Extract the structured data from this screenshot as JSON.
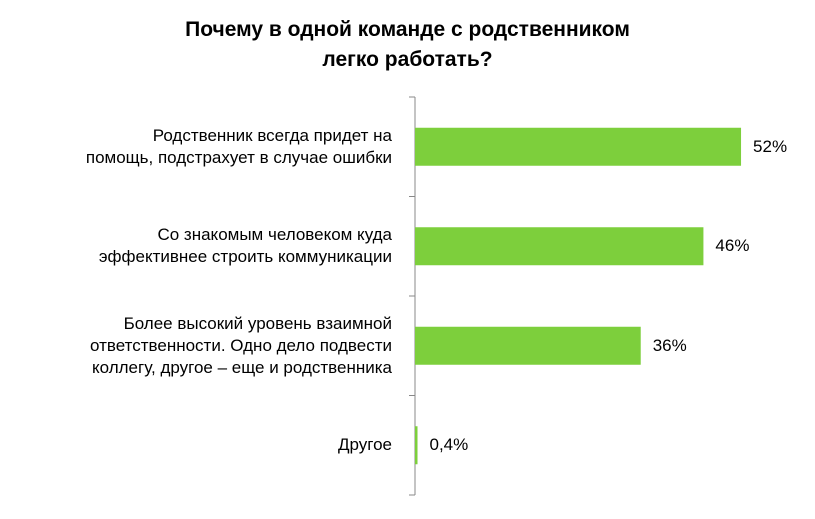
{
  "chart_data": {
    "type": "bar",
    "orientation": "horizontal",
    "title": "Почему в одной команде с родственником\nлегко работать?",
    "categories": [
      "Родственник всегда придет  на\nпомощь,  подстрахует в случае ошибки",
      "Со знакомым  человеком куда\nэффективнее строить коммуникации",
      "Более высокий уровень взаимной\nответственности. Одно дело подвести\nколлегу, другое – еще и родственника",
      "Другое"
    ],
    "values": [
      52,
      46,
      36,
      0.4
    ],
    "value_labels": [
      "52%",
      "46%",
      "36%",
      "0,4%"
    ],
    "color": "#7dcf3c"
  }
}
